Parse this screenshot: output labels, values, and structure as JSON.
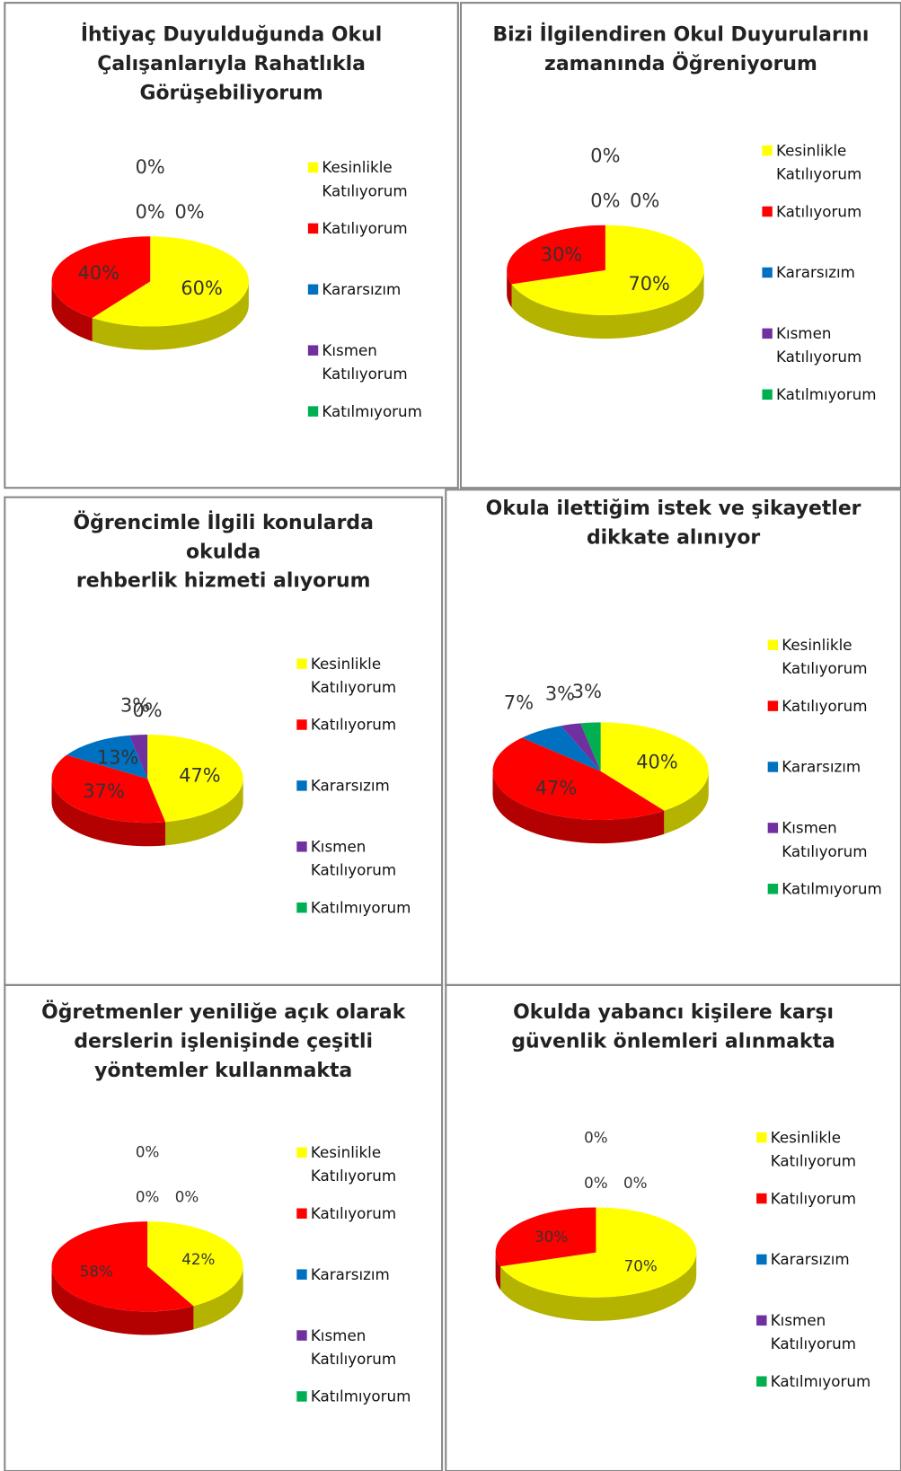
{
  "chart_data": [
    {
      "type": "pie",
      "title": [
        "İhtiyaç Duyulduğunda Okul",
        "Çalışanlarıyla Rahatlıkla",
        "Görüşebiliyorum"
      ],
      "categories": [
        "Kesinlikle Katılıyorum",
        "Katılıyorum",
        "Kararsızım",
        "Kısmen Katılıyorum",
        "Katılmıyorum"
      ],
      "values": [
        60,
        40,
        0,
        0,
        0
      ],
      "value_labels": [
        "60%",
        "40%",
        "0%",
        "0%",
        "0%"
      ],
      "colors": [
        "#ffff00",
        "#ff0000",
        "#0070c0",
        "#7030a0",
        "#00b050"
      ]
    },
    {
      "type": "pie",
      "title": [
        "Bizi İlgilendiren Okul Duyurularını",
        "zamanında Öğreniyorum"
      ],
      "categories": [
        "Kesinlikle Katılıyorum",
        "Katılıyorum",
        "Kararsızım",
        "Kısmen Katılıyorum",
        "Katılmıyorum"
      ],
      "values": [
        70,
        30,
        0,
        0,
        0
      ],
      "value_labels": [
        "70%",
        "30%",
        "0%",
        "0%",
        "0%"
      ],
      "colors": [
        "#ffff00",
        "#ff0000",
        "#0070c0",
        "#7030a0",
        "#00b050"
      ]
    },
    {
      "type": "pie",
      "title": [
        "Öğrencimle İlgili konularda",
        "okulda",
        "rehberlik hizmeti alıyorum"
      ],
      "categories": [
        "Kesinlikle Katılıyorum",
        "Katılıyorum",
        "Kararsızım",
        "Kısmen Katılıyorum",
        "Katılmıyorum"
      ],
      "values": [
        47,
        37,
        13,
        3,
        0
      ],
      "value_labels": [
        "47%",
        "37%",
        "13%",
        "3%",
        "0%"
      ],
      "colors": [
        "#ffff00",
        "#ff0000",
        "#0070c0",
        "#7030a0",
        "#00b050"
      ]
    },
    {
      "type": "pie",
      "title": [
        "Okula ilettiğim istek ve şikayetler",
        "dikkate alınıyor"
      ],
      "categories": [
        "Kesinlikle Katılıyorum",
        "Katılıyorum",
        "Kararsızım",
        "Kısmen Katılıyorum",
        "Katılmıyorum"
      ],
      "values": [
        40,
        47,
        7,
        3,
        3
      ],
      "value_labels": [
        "40%",
        "47%",
        "7%",
        "3%",
        "3%"
      ],
      "colors": [
        "#ffff00",
        "#ff0000",
        "#0070c0",
        "#7030a0",
        "#00b050"
      ]
    },
    {
      "type": "pie",
      "title": [
        "Öğretmenler yeniliğe açık olarak",
        "derslerin işlenişinde çeşitli",
        "yöntemler kullanmakta"
      ],
      "categories": [
        "Kesinlikle Katılıyorum",
        "Katılıyorum",
        "Kararsızım",
        "Kısmen Katılıyorum",
        "Katılmıyorum"
      ],
      "values": [
        42,
        58,
        0,
        0,
        0
      ],
      "value_labels": [
        "42%",
        "58%",
        "0%",
        "0%",
        "0%"
      ],
      "colors": [
        "#ffff00",
        "#ff0000",
        "#0070c0",
        "#7030a0",
        "#00b050"
      ]
    },
    {
      "type": "pie",
      "title": [
        "Okulda yabancı kişilere karşı",
        "güvenlik önlemleri alınmakta"
      ],
      "categories": [
        "Kesinlikle Katılıyorum",
        "Katılıyorum",
        "Kararsızım",
        "Kısmen Katılıyorum",
        "Katılmıyorum"
      ],
      "values": [
        70,
        30,
        0,
        0,
        0
      ],
      "value_labels": [
        "70%",
        "30%",
        "0%",
        "0%",
        "0%"
      ],
      "colors": [
        "#ffff00",
        "#ff0000",
        "#0070c0",
        "#7030a0",
        "#00b050"
      ]
    }
  ]
}
